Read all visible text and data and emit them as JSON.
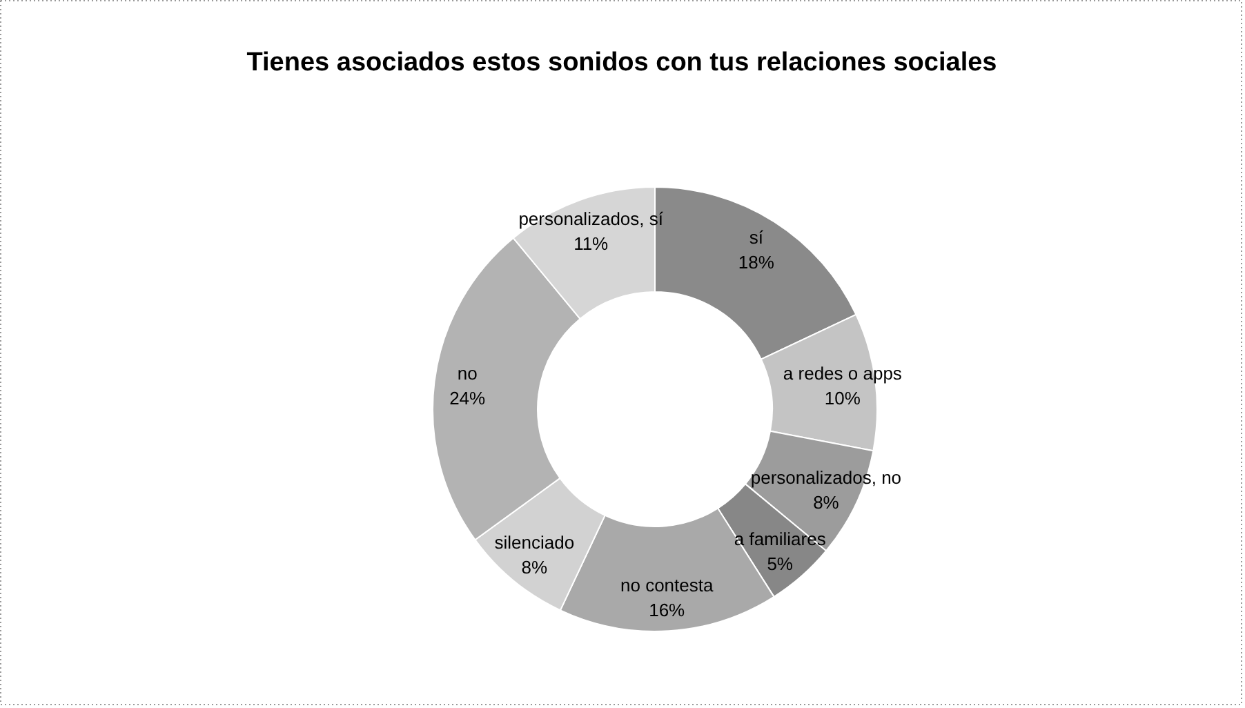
{
  "chart_data": {
    "type": "donut",
    "title": "Tienes asociados estos sonidos con tus relaciones sociales",
    "categories": [
      "sí",
      "a redes o apps",
      "personalizados, no",
      "a familiares",
      "no contesta",
      "silenciado",
      "no",
      "personalizados, sí"
    ],
    "values": [
      18,
      10,
      8,
      5,
      16,
      8,
      24,
      11
    ],
    "value_labels": [
      "18%",
      "10%",
      "8%",
      "5%",
      "16%",
      "8%",
      "24%",
      "11%"
    ],
    "colors": [
      "#8a8a8a",
      "#c4c4c4",
      "#9c9c9c",
      "#878787",
      "#a9a9a9",
      "#d2d2d2",
      "#b3b3b3",
      "#d6d6d6"
    ]
  }
}
